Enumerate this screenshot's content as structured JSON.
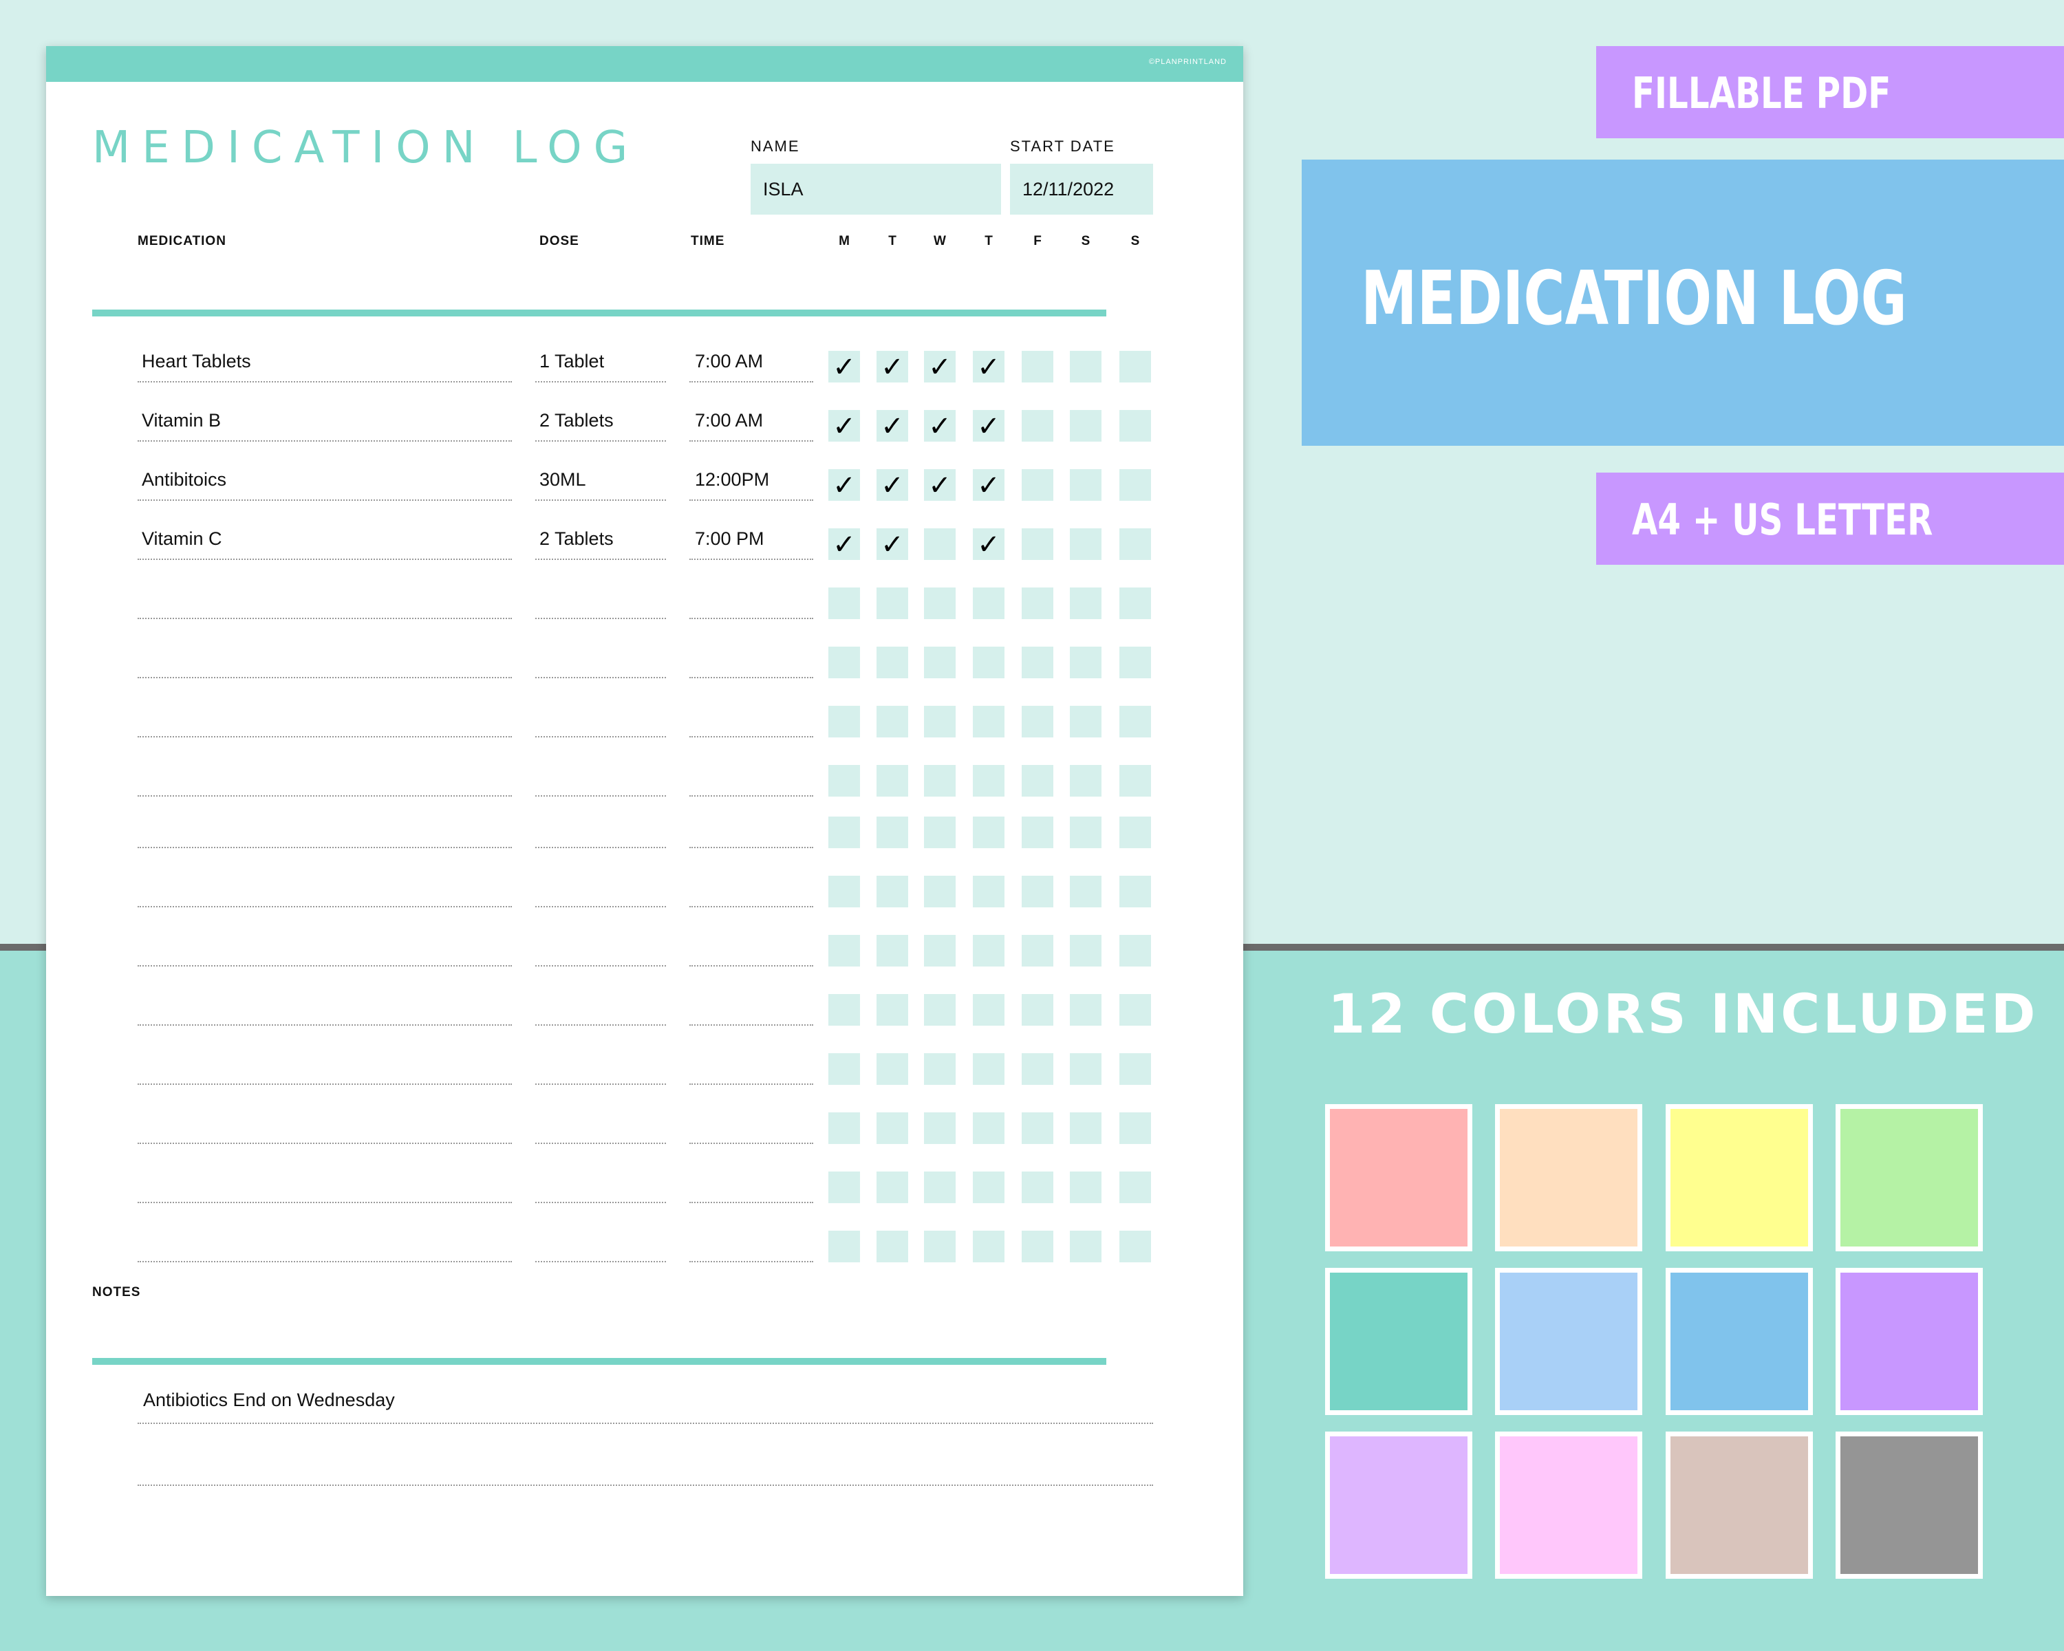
{
  "sheet": {
    "brand": "©PLANPRINTLAND",
    "title": "MEDICATION LOG",
    "name_label": "NAME",
    "name_value": "ISLA",
    "start_date_label": "START DATE",
    "start_date_value": "12/11/2022",
    "columns": {
      "medication": "MEDICATION",
      "dose": "DOSE",
      "time": "TIME",
      "days": [
        "M",
        "T",
        "W",
        "T",
        "F",
        "S",
        "S"
      ]
    },
    "rows": [
      {
        "medication": "Heart Tablets",
        "dose": "1 Tablet",
        "time": "7:00 AM",
        "checks": [
          true,
          true,
          true,
          true,
          false,
          false,
          false
        ]
      },
      {
        "medication": "Vitamin B",
        "dose": "2 Tablets",
        "time": "7:00 AM",
        "checks": [
          true,
          true,
          true,
          true,
          false,
          false,
          false
        ]
      },
      {
        "medication": "Antibitoics",
        "dose": "30ML",
        "time": "12:00PM",
        "checks": [
          true,
          true,
          true,
          true,
          false,
          false,
          false
        ]
      },
      {
        "medication": "Vitamin C",
        "dose": "2 Tablets",
        "time": "7:00 PM",
        "checks": [
          true,
          true,
          false,
          true,
          false,
          false,
          false
        ]
      },
      {
        "medication": "",
        "dose": "",
        "time": "",
        "checks": [
          false,
          false,
          false,
          false,
          false,
          false,
          false
        ]
      },
      {
        "medication": "",
        "dose": "",
        "time": "",
        "checks": [
          false,
          false,
          false,
          false,
          false,
          false,
          false
        ]
      },
      {
        "medication": "",
        "dose": "",
        "time": "",
        "checks": [
          false,
          false,
          false,
          false,
          false,
          false,
          false
        ]
      },
      {
        "medication": "",
        "dose": "",
        "time": "",
        "checks": [
          false,
          false,
          false,
          false,
          false,
          false,
          false
        ]
      },
      {
        "medication": "",
        "dose": "",
        "time": "",
        "checks": [
          false,
          false,
          false,
          false,
          false,
          false,
          false
        ]
      },
      {
        "medication": "",
        "dose": "",
        "time": "",
        "checks": [
          false,
          false,
          false,
          false,
          false,
          false,
          false
        ]
      },
      {
        "medication": "",
        "dose": "",
        "time": "",
        "checks": [
          false,
          false,
          false,
          false,
          false,
          false,
          false
        ]
      },
      {
        "medication": "",
        "dose": "",
        "time": "",
        "checks": [
          false,
          false,
          false,
          false,
          false,
          false,
          false
        ]
      },
      {
        "medication": "",
        "dose": "",
        "time": "",
        "checks": [
          false,
          false,
          false,
          false,
          false,
          false,
          false
        ]
      },
      {
        "medication": "",
        "dose": "",
        "time": "",
        "checks": [
          false,
          false,
          false,
          false,
          false,
          false,
          false
        ]
      },
      {
        "medication": "",
        "dose": "",
        "time": "",
        "checks": [
          false,
          false,
          false,
          false,
          false,
          false,
          false
        ]
      },
      {
        "medication": "",
        "dose": "",
        "time": "",
        "checks": [
          false,
          false,
          false,
          false,
          false,
          false,
          false
        ]
      }
    ],
    "check_symbol": "✓",
    "notes_label": "NOTES",
    "notes": [
      "Antibiotics End on Wednesday",
      ""
    ]
  },
  "promo": {
    "fillable": "FILLABLE PDF",
    "main_title": "MEDICATION LOG",
    "sizes": "A4 + US LETTER",
    "colors_title": "12 COLORS INCLUDED",
    "swatches": [
      "#ffb3b3",
      "#ffdfbf",
      "#ffff8f",
      "#b5f2a5",
      "#77d4c6",
      "#a9d0f7",
      "#80c3ec",
      "#c897ff",
      "#deb6ff",
      "#ffc7fb",
      "#d9c4bc",
      "#959595"
    ]
  },
  "colors": {
    "accent": "#77d4c6",
    "cell_fill": "#d6f0ec",
    "label_purple": "#c897ff",
    "label_blue": "#80c3ec"
  }
}
